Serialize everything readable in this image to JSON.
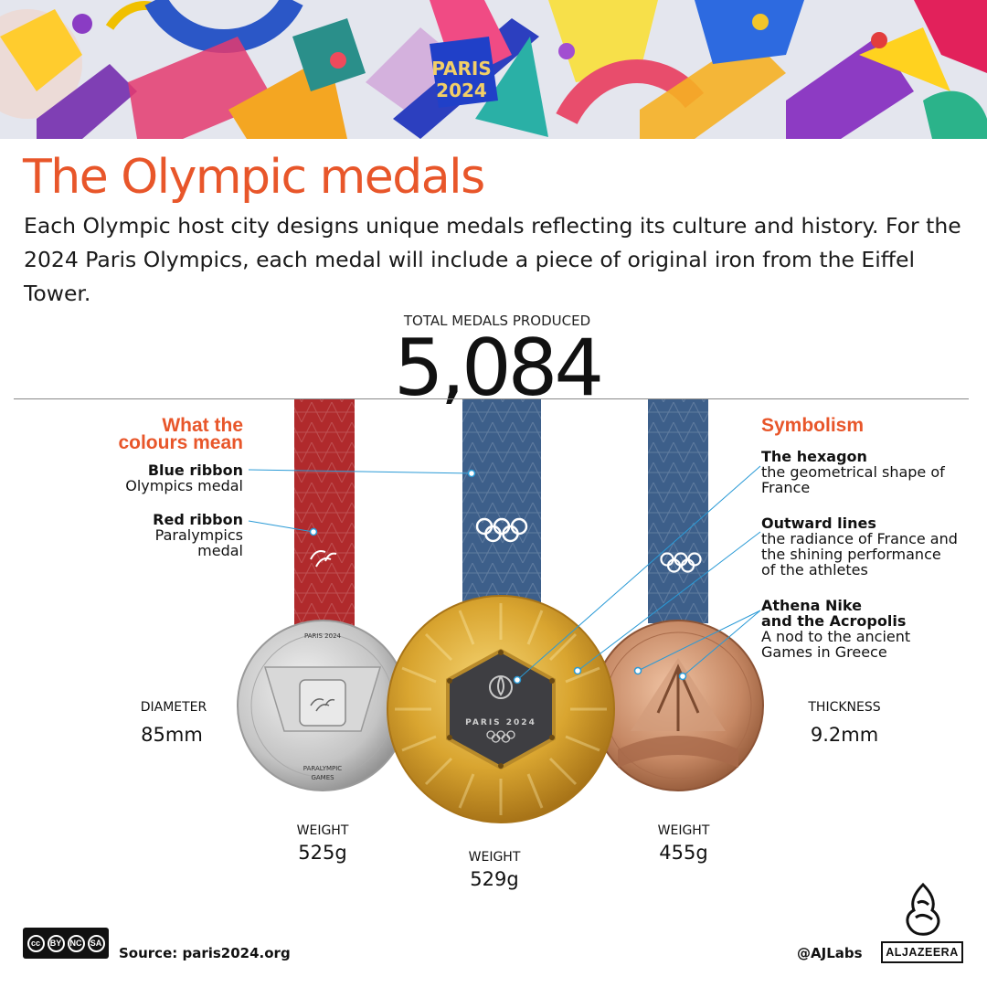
{
  "banner": {
    "logo_line1": "PARIS",
    "logo_line2": "2024"
  },
  "title": "The Olympic medals",
  "intro": "Each Olympic host city designs unique medals reflecting its culture and history. For the 2024 Paris Olympics, each medal will include a piece of original iron from the Eiffel Tower.",
  "total": {
    "label": "TOTAL MEDALS PRODUCED",
    "value": "5,084"
  },
  "colours": {
    "heading_line1": "What the",
    "heading_line2": "colours mean",
    "items": [
      {
        "title": "Blue ribbon",
        "text": "Olympics medal"
      },
      {
        "title": "Red ribbon",
        "text_line1": "Paralympics",
        "text_line2": "medal"
      }
    ]
  },
  "symbolism": {
    "heading": "Symbolism",
    "items": [
      {
        "title": "The hexagon",
        "text_line1": "the geometrical shape of",
        "text_line2": "France"
      },
      {
        "title": "Outward lines",
        "text_line1": "the radiance of France and",
        "text_line2": "the shining performance",
        "text_line3": "of the athletes"
      },
      {
        "title_line1": "Athena Nike",
        "title_line2": "and the Acropolis",
        "text_line1": "A nod to the ancient",
        "text_line2": "Games in Greece"
      }
    ]
  },
  "medal_text": {
    "silver_top": "PARIS 2024",
    "silver_bottom1": "PARALYMPIC",
    "silver_bottom2": "GAMES",
    "gold_center": "PARIS 2024"
  },
  "stats": {
    "diameter": {
      "label": "DIAMETER",
      "value": "85mm"
    },
    "thickness": {
      "label": "THICKNESS",
      "value": "9.2mm"
    },
    "weight_silver": {
      "label": "WEIGHT",
      "value": "525g"
    },
    "weight_gold": {
      "label": "WEIGHT",
      "value": "529g"
    },
    "weight_bronze": {
      "label": "WEIGHT",
      "value": "455g"
    }
  },
  "footer": {
    "license": [
      "cc",
      "BY",
      "NC",
      "SA"
    ],
    "source": "Source: paris2024.org",
    "handle": "@AJLabs",
    "brand": "ALJAZEERA"
  },
  "colors": {
    "accent": "#e8562a",
    "blue_ribbon": "#3d5f8a",
    "red_ribbon": "#b02a2c",
    "gold": "#d9a530",
    "silver": "#c9c9c9",
    "bronze": "#c08060"
  },
  "icons": [
    "olympic-rings-icon",
    "paralympic-agitos-icon",
    "paris-flame-icon",
    "aljazeera-logo-icon",
    "creative-commons-icon"
  ]
}
